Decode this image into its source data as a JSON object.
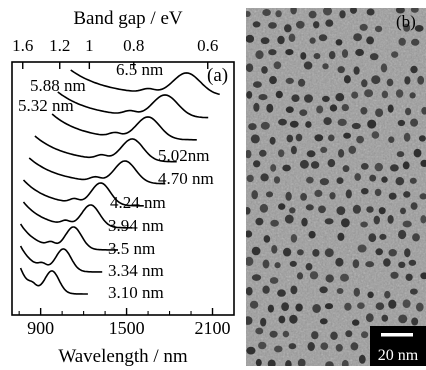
{
  "chart_data": [
    {
      "type": "line",
      "panel_label": "(a)",
      "xlabel": "Wavelength / nm",
      "top_axis_label": "Band gap / eV",
      "xlim": [
        700,
        2250
      ],
      "x_ticks": [
        900,
        1500,
        2100
      ],
      "top_ticks": [
        {
          "label": "1.6",
          "ev": 1.6
        },
        {
          "label": "1.2",
          "ev": 1.2
        },
        {
          "label": "1",
          "ev": 1.0
        },
        {
          "label": "0.8",
          "ev": 0.8
        },
        {
          "label": "0.6",
          "ev": 0.6
        }
      ],
      "y_units": "arbitrary (stacked, offset absorbance)",
      "series": [
        {
          "name": "6.5 nm",
          "peak_nm": 1920,
          "start_nm": 1110,
          "end_nm": 2150
        },
        {
          "name": "5.88 nm",
          "peak_nm": 1770,
          "start_nm": 1020,
          "end_nm": 2070
        },
        {
          "name": "5.32 nm",
          "peak_nm": 1650,
          "start_nm": 980,
          "end_nm": 1990
        },
        {
          "name": "5.02nm",
          "peak_nm": 1540,
          "start_nm": 860,
          "end_nm": 1850
        },
        {
          "name": "4.70 nm",
          "peak_nm": 1490,
          "start_nm": 820,
          "end_nm": 1770
        },
        {
          "name": "4.24 nm",
          "peak_nm": 1320,
          "start_nm": 780,
          "end_nm": 1620
        },
        {
          "name": "3.94 nm",
          "peak_nm": 1250,
          "start_nm": 780,
          "end_nm": 1540
        },
        {
          "name": "3.5 nm",
          "peak_nm": 1130,
          "start_nm": 760,
          "end_nm": 1440
        },
        {
          "name": "3.34 nm",
          "peak_nm": 1060,
          "start_nm": 760,
          "end_nm": 1330
        },
        {
          "name": "3.10 nm",
          "peak_nm": 980,
          "start_nm": 760,
          "end_nm": 1230
        }
      ]
    },
    {
      "type": "image",
      "panel_label": "(b)",
      "scale_bar": "20 nm"
    }
  ]
}
